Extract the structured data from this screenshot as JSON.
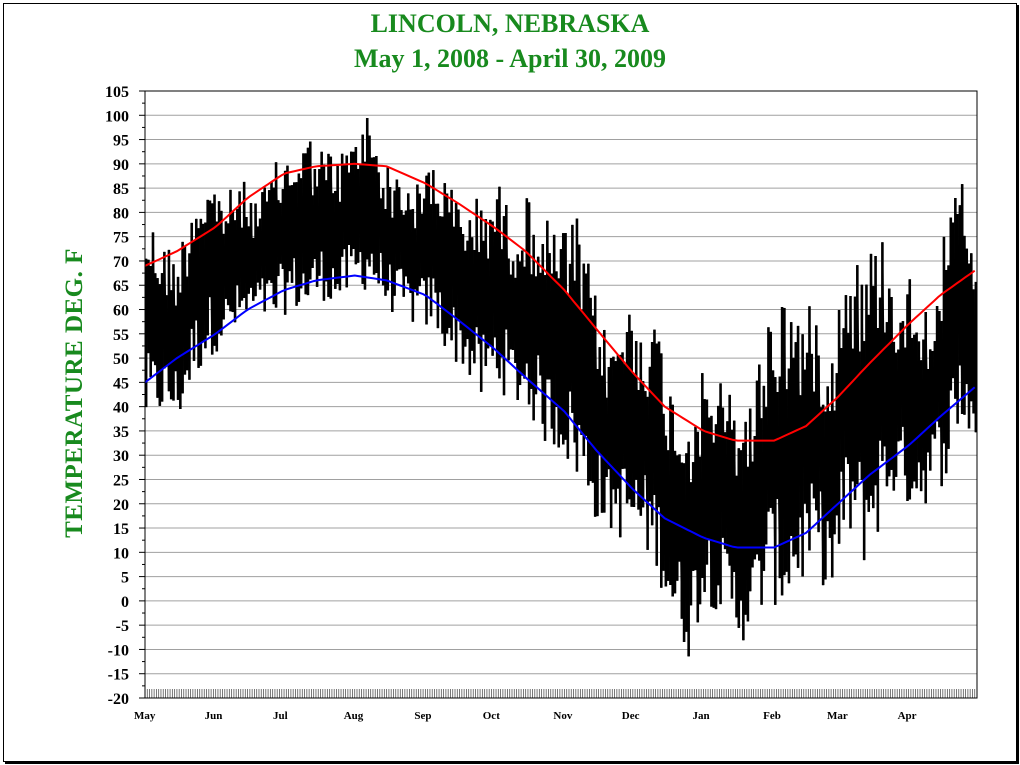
{
  "chart_data": {
    "type": "line",
    "title": "LINCOLN, NEBRASKA",
    "subtitle": "May 1, 2008 - April 30,  2009",
    "xlabel": "",
    "ylabel": "TEMPERATURE DEG. F",
    "ylim": [
      -20,
      105
    ],
    "ytick_step": 5,
    "x_start_date": "2008-05-01",
    "x_end_date": "2009-04-30",
    "x_tick_labels": [
      "May",
      "Jun",
      "Jul",
      "Aug",
      "Sep",
      "Oct",
      "Nov",
      "Dec",
      "Jan",
      "Feb",
      "Mar",
      "Apr"
    ],
    "grid": true,
    "colors": {
      "title": "#188a1e",
      "observed": "#000000",
      "normal_high": "#ff0000",
      "normal_low": "#0000ff"
    },
    "series": [
      {
        "name": "",
        "role": "observed_high",
        "x": [
          "2008-05-01",
          "2008-05-08",
          "2008-05-15",
          "2008-05-22",
          "2008-05-29",
          "2008-06-05",
          "2008-06-12",
          "2008-06-19",
          "2008-06-26",
          "2008-07-03",
          "2008-07-10",
          "2008-07-17",
          "2008-07-24",
          "2008-07-31",
          "2008-08-07",
          "2008-08-14",
          "2008-08-21",
          "2008-08-28",
          "2008-09-04",
          "2008-09-11",
          "2008-09-18",
          "2008-09-25",
          "2008-10-02",
          "2008-10-09",
          "2008-10-16",
          "2008-10-23",
          "2008-10-30",
          "2008-11-06",
          "2008-11-13",
          "2008-11-20",
          "2008-11-27",
          "2008-12-04",
          "2008-12-11",
          "2008-12-18",
          "2008-12-25",
          "2009-01-01",
          "2009-01-08",
          "2009-01-15",
          "2009-01-22",
          "2009-01-29",
          "2009-02-05",
          "2009-02-12",
          "2009-02-19",
          "2009-02-26",
          "2009-03-05",
          "2009-03-12",
          "2009-03-19",
          "2009-03-26",
          "2009-04-02",
          "2009-04-09",
          "2009-04-16",
          "2009-04-23",
          "2009-04-30"
        ],
        "values": [
          81,
          75,
          72,
          86,
          88,
          84,
          87,
          83,
          90,
          93,
          97,
          94,
          92,
          96,
          102,
          90,
          88,
          86,
          93,
          86,
          82,
          84,
          87,
          80,
          84,
          79,
          77,
          79,
          66,
          53,
          62,
          60,
          58,
          44,
          41,
          48,
          46,
          42,
          43,
          61,
          65,
          62,
          60,
          56,
          75,
          70,
          78,
          65,
          68,
          62,
          75,
          89,
          70
        ]
      },
      {
        "name": "",
        "role": "observed_low",
        "x": [
          "2008-05-01",
          "2008-05-08",
          "2008-05-15",
          "2008-05-22",
          "2008-05-29",
          "2008-06-05",
          "2008-06-12",
          "2008-06-19",
          "2008-06-26",
          "2008-07-03",
          "2008-07-10",
          "2008-07-17",
          "2008-07-24",
          "2008-07-31",
          "2008-08-07",
          "2008-08-14",
          "2008-08-21",
          "2008-08-28",
          "2008-09-04",
          "2008-09-11",
          "2008-09-18",
          "2008-09-25",
          "2008-10-02",
          "2008-10-09",
          "2008-10-16",
          "2008-10-23",
          "2008-10-30",
          "2008-11-06",
          "2008-11-13",
          "2008-11-20",
          "2008-11-27",
          "2008-12-04",
          "2008-12-11",
          "2008-12-18",
          "2008-12-25",
          "2009-01-01",
          "2009-01-08",
          "2009-01-15",
          "2009-01-22",
          "2009-01-29",
          "2009-02-05",
          "2009-02-12",
          "2009-02-19",
          "2009-02-26",
          "2009-03-05",
          "2009-03-12",
          "2009-03-19",
          "2009-03-26",
          "2009-04-02",
          "2009-04-09",
          "2009-04-16",
          "2009-04-23",
          "2009-04-30"
        ],
        "values": [
          35,
          38,
          36,
          45,
          50,
          53,
          55,
          58,
          56,
          60,
          58,
          62,
          60,
          63,
          64,
          60,
          58,
          56,
          55,
          50,
          47,
          40,
          44,
          40,
          38,
          32,
          30,
          24,
          17,
          14,
          12,
          10,
          6,
          -6,
          -12,
          0,
          -3,
          -9,
          -8,
          0,
          -3,
          2,
          6,
          -1,
          12,
          7,
          14,
          22,
          18,
          20,
          24,
          35,
          31
        ]
      },
      {
        "name": "",
        "role": "normal_high",
        "x": [
          "2008-05-01",
          "2008-05-15",
          "2008-06-01",
          "2008-06-15",
          "2008-07-01",
          "2008-07-15",
          "2008-08-01",
          "2008-08-15",
          "2008-09-01",
          "2008-09-15",
          "2008-10-01",
          "2008-10-15",
          "2008-11-01",
          "2008-11-15",
          "2008-12-01",
          "2008-12-15",
          "2009-01-01",
          "2009-01-15",
          "2009-02-01",
          "2009-02-15",
          "2009-03-01",
          "2009-03-15",
          "2009-04-01",
          "2009-04-15",
          "2009-04-30"
        ],
        "values": [
          69,
          72,
          77,
          83,
          88,
          89.5,
          90,
          89.5,
          86,
          82,
          77,
          72,
          64,
          56,
          47,
          40,
          35,
          33,
          33,
          36,
          42,
          49,
          57,
          63,
          68
        ]
      },
      {
        "name": "",
        "role": "normal_low",
        "x": [
          "2008-05-01",
          "2008-05-15",
          "2008-06-01",
          "2008-06-15",
          "2008-07-01",
          "2008-07-15",
          "2008-08-01",
          "2008-08-15",
          "2008-09-01",
          "2008-09-15",
          "2008-10-01",
          "2008-10-15",
          "2008-11-01",
          "2008-11-15",
          "2008-12-01",
          "2008-12-15",
          "2009-01-01",
          "2009-01-15",
          "2009-02-01",
          "2009-02-15",
          "2009-03-01",
          "2009-03-15",
          "2009-04-01",
          "2009-04-15",
          "2009-04-30"
        ],
        "values": [
          45,
          50,
          55,
          60,
          64,
          66,
          67,
          66,
          63,
          58,
          52,
          46,
          39,
          31,
          23,
          17,
          13,
          11,
          11,
          14,
          20,
          26,
          32,
          38,
          44
        ]
      }
    ]
  }
}
